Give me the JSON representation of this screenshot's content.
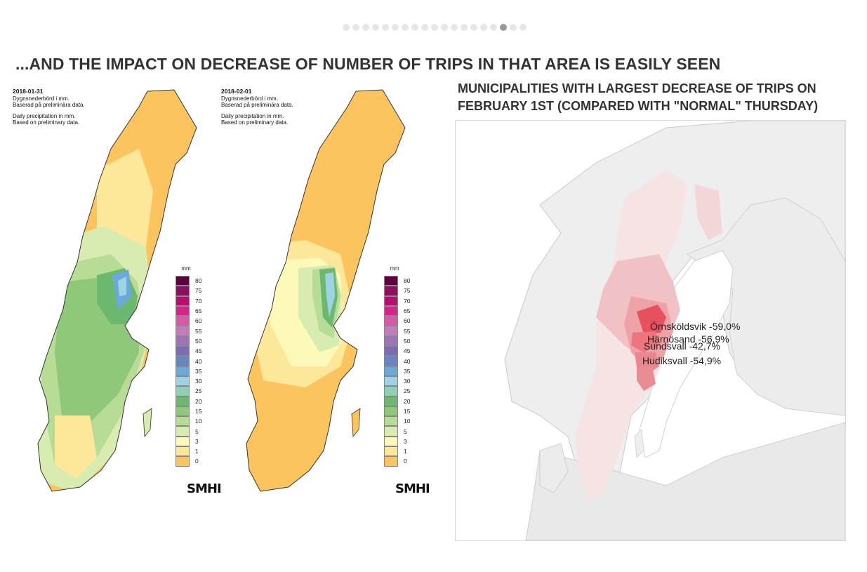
{
  "carousel": {
    "count": 19,
    "active": 16
  },
  "slide_title": "...AND THE IMPACT ON DECREASE OF NUMBER OF TRIPS IN THAT AREA IS EASILY SEEN",
  "map_title_line1": "MUNICIPALITIES WITH LARGEST DECREASE OF TRIPS ON",
  "map_title_line2": "FEBRUARY 1ST (COMPARED WITH \"NORMAL\" THURSDAY)",
  "precip_maps": [
    {
      "date": "2018-01-31",
      "sv1": "Dygnsnederbörd i mm.",
      "sv2": "Baserad på preliminära data.",
      "en1": "Daily precipitation in mm.",
      "en2": "Based on preliminary data.",
      "brand": "SMHI"
    },
    {
      "date": "2018-02-01",
      "sv1": "Dygnsnederbörd i mm.",
      "sv2": "Baserad på preliminära data.",
      "en1": "Daily precipitation in mm.",
      "en2": "Based on preliminary data.",
      "brand": "SMHI"
    }
  ],
  "legend": {
    "unit": "mm",
    "values": [
      "80",
      "75",
      "70",
      "65",
      "60",
      "55",
      "50",
      "45",
      "40",
      "35",
      "30",
      "25",
      "20",
      "15",
      "10",
      "5",
      "3",
      "1",
      "0"
    ],
    "colors": [
      "#5e0040",
      "#8c1060",
      "#b80e70",
      "#d8238a",
      "#d65aa8",
      "#c27bbd",
      "#9f73b8",
      "#7c6cb2",
      "#6a84c0",
      "#6ba9d8",
      "#9fd3e4",
      "#8ed0b3",
      "#6cb86f",
      "#8fc878",
      "#b6dc95",
      "#d8ecb2",
      "#fdf9b8",
      "#fde79a",
      "#fbc45e"
    ]
  },
  "municipality_labels": [
    {
      "name": "Örnsköldsvik",
      "value": "-59,0%"
    },
    {
      "name": "Härnösand",
      "value": "-56,9%"
    },
    {
      "name": "Sundsvall",
      "value": "-42,7%"
    },
    {
      "name": "Hudiksvall",
      "value": "-54,9%"
    }
  ]
}
